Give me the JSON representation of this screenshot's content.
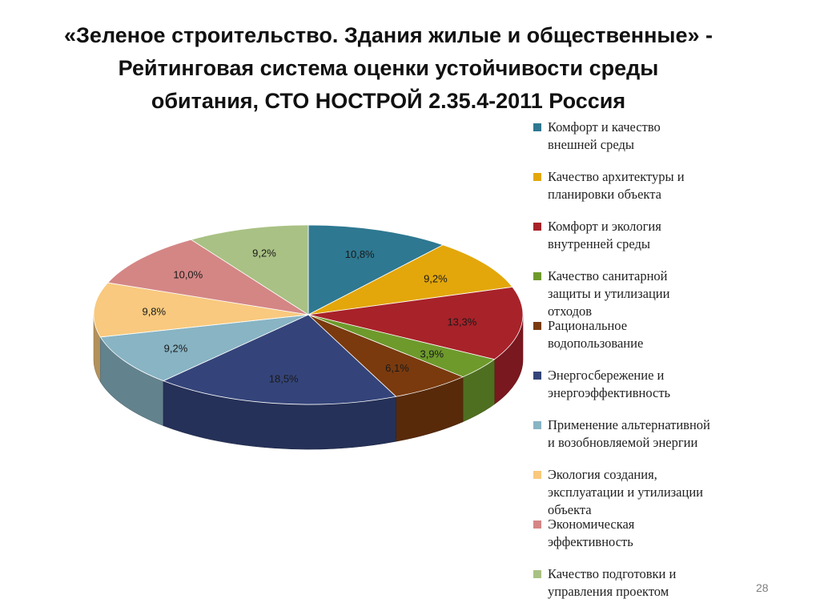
{
  "slide": {
    "title_lines": [
      "«Зеленое строительство. Здания жилые и общественные» -",
      "Рейтинговая система оценки устойчивости среды",
      "обитания, СТО НОСТРОЙ 2.35.4-2011 Россия"
    ],
    "page_number": "28"
  },
  "chart_data": {
    "type": "pie",
    "title": "",
    "three_d": true,
    "legend_position": "right",
    "categories": [
      "Комфорт и качество внешней среды",
      "Качество архитектуры и планировки объекта",
      "Комфорт и экология внутренней среды",
      "Качество санитарной защиты и утилизации отходов",
      "Рациональное водопользование",
      "Энергосбережение и энергоэффективность",
      "Применение альтернативной и возобновляемой энергии",
      "Экология создания, эксплуатации и утилизации объекта",
      "Экономическая эффективность",
      "Качество подготовки и управления проектом"
    ],
    "legend_lines": [
      [
        "Комфорт и качество",
        "внешней среды"
      ],
      [
        "Качество архитектуры и",
        "планировки объекта"
      ],
      [
        "Комфорт и экология",
        "внутренней среды"
      ],
      [
        "Качество санитарной",
        "защиты и утилизации",
        "отходов"
      ],
      [
        "Рациональное",
        "водопользование"
      ],
      [
        "Энергосбережение и",
        "энергоэффективность"
      ],
      [
        "Применение альтернативной",
        "и возобновляемой энергии"
      ],
      [
        "Экология создания,",
        "эксплуатации и утилизации",
        "объекта"
      ],
      [
        "Экономическая",
        "эффективность"
      ],
      [
        "Качество подготовки и",
        "управления проектом"
      ]
    ],
    "values": [
      10.8,
      9.2,
      13.3,
      3.9,
      6.1,
      18.5,
      9.2,
      9.8,
      10.0,
      9.2
    ],
    "data_labels": [
      "10,8%",
      "9,2%",
      "13,3%",
      "3,9%",
      "6,1%",
      "18,5%",
      "9,2%",
      "9,8%",
      "10,0%",
      "9,2%"
    ],
    "colors": [
      "#2E7891",
      "#E3A70B",
      "#A82229",
      "#6E9A2C",
      "#7A3A0E",
      "#34447A",
      "#88B4C4",
      "#F8C97E",
      "#D48685",
      "#A9C184"
    ]
  }
}
